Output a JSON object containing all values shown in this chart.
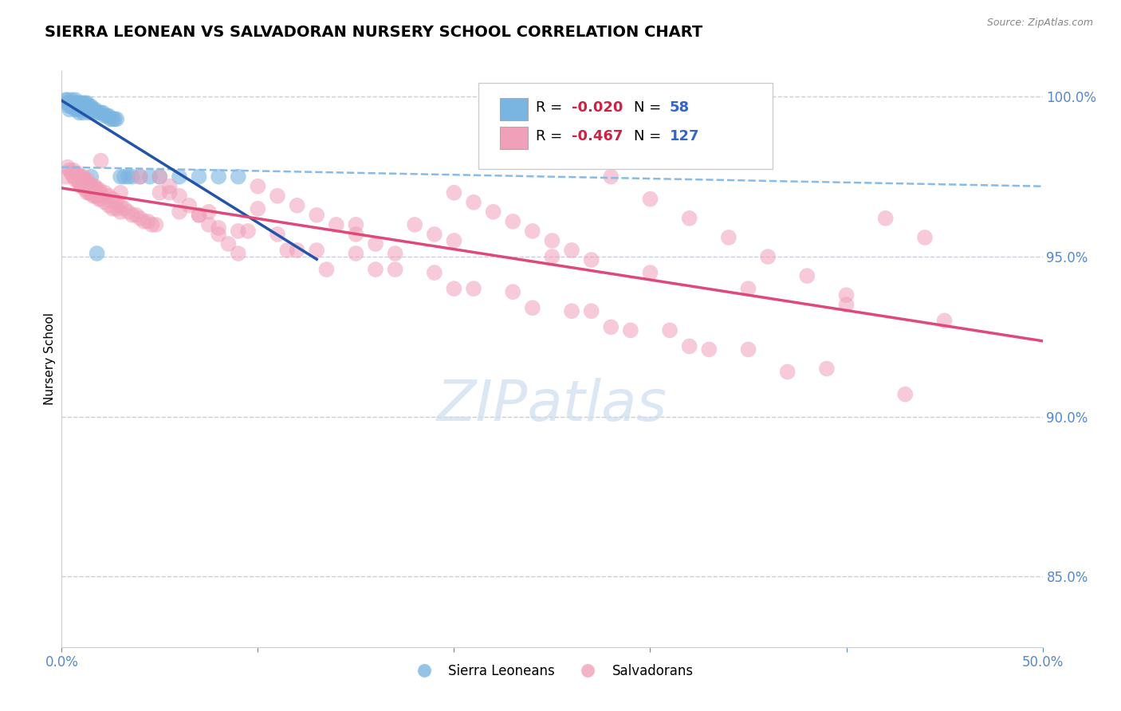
{
  "title": "SIERRA LEONEAN VS SALVADORAN NURSERY SCHOOL CORRELATION CHART",
  "source": "Source: ZipAtlas.com",
  "ylabel": "Nursery School",
  "xlim": [
    0.0,
    0.5
  ],
  "ylim": [
    0.828,
    1.008
  ],
  "blue_color": "#7ab4e0",
  "pink_color": "#f0a0b8",
  "trendline_blue_color": "#2255aa",
  "trendline_pink_color": "#e04878",
  "dashed_line_color": "#88bbe8",
  "grid_color": "#ccccdd",
  "blue_scatter_x": [
    0.002,
    0.003,
    0.004,
    0.004,
    0.005,
    0.005,
    0.006,
    0.006,
    0.007,
    0.007,
    0.008,
    0.008,
    0.009,
    0.009,
    0.01,
    0.01,
    0.011,
    0.011,
    0.012,
    0.012,
    0.013,
    0.013,
    0.014,
    0.014,
    0.015,
    0.015,
    0.016,
    0.017,
    0.018,
    0.019,
    0.02,
    0.021,
    0.022,
    0.023,
    0.024,
    0.025,
    0.026,
    0.027,
    0.028,
    0.03,
    0.032,
    0.034,
    0.036,
    0.04,
    0.045,
    0.05,
    0.06,
    0.07,
    0.08,
    0.09,
    0.003,
    0.005,
    0.007,
    0.009,
    0.011,
    0.013,
    0.015,
    0.018
  ],
  "blue_scatter_y": [
    0.999,
    0.998,
    0.997,
    0.996,
    0.998,
    0.997,
    0.998,
    0.997,
    0.997,
    0.996,
    0.998,
    0.996,
    0.997,
    0.995,
    0.998,
    0.996,
    0.997,
    0.995,
    0.998,
    0.996,
    0.997,
    0.996,
    0.997,
    0.995,
    0.997,
    0.996,
    0.996,
    0.996,
    0.995,
    0.995,
    0.995,
    0.995,
    0.994,
    0.994,
    0.994,
    0.993,
    0.993,
    0.993,
    0.993,
    0.975,
    0.975,
    0.975,
    0.975,
    0.975,
    0.975,
    0.975,
    0.975,
    0.975,
    0.975,
    0.975,
    0.999,
    0.999,
    0.999,
    0.998,
    0.998,
    0.998,
    0.975,
    0.951
  ],
  "pink_scatter_x": [
    0.002,
    0.003,
    0.004,
    0.005,
    0.006,
    0.006,
    0.007,
    0.007,
    0.008,
    0.008,
    0.009,
    0.009,
    0.01,
    0.01,
    0.011,
    0.011,
    0.012,
    0.012,
    0.013,
    0.013,
    0.014,
    0.014,
    0.015,
    0.015,
    0.016,
    0.016,
    0.017,
    0.017,
    0.018,
    0.018,
    0.019,
    0.019,
    0.02,
    0.02,
    0.022,
    0.022,
    0.024,
    0.024,
    0.026,
    0.026,
    0.028,
    0.028,
    0.03,
    0.03,
    0.032,
    0.034,
    0.036,
    0.038,
    0.04,
    0.042,
    0.044,
    0.046,
    0.048,
    0.05,
    0.055,
    0.06,
    0.065,
    0.07,
    0.075,
    0.08,
    0.085,
    0.09,
    0.1,
    0.11,
    0.12,
    0.13,
    0.14,
    0.15,
    0.16,
    0.17,
    0.18,
    0.19,
    0.2,
    0.21,
    0.22,
    0.23,
    0.24,
    0.25,
    0.26,
    0.27,
    0.28,
    0.3,
    0.32,
    0.34,
    0.36,
    0.38,
    0.4,
    0.42,
    0.44,
    0.05,
    0.1,
    0.15,
    0.2,
    0.25,
    0.3,
    0.35,
    0.4,
    0.45,
    0.03,
    0.06,
    0.09,
    0.12,
    0.16,
    0.2,
    0.24,
    0.28,
    0.32,
    0.07,
    0.11,
    0.15,
    0.19,
    0.23,
    0.27,
    0.31,
    0.35,
    0.39,
    0.08,
    0.13,
    0.17,
    0.21,
    0.26,
    0.29,
    0.33,
    0.37,
    0.43,
    0.02,
    0.04,
    0.055,
    0.075,
    0.095,
    0.115,
    0.135
  ],
  "pink_scatter_y": [
    0.975,
    0.978,
    0.977,
    0.976,
    0.977,
    0.975,
    0.976,
    0.974,
    0.976,
    0.974,
    0.975,
    0.973,
    0.975,
    0.972,
    0.975,
    0.972,
    0.974,
    0.971,
    0.974,
    0.97,
    0.973,
    0.97,
    0.972,
    0.97,
    0.972,
    0.969,
    0.972,
    0.969,
    0.971,
    0.969,
    0.971,
    0.968,
    0.97,
    0.968,
    0.97,
    0.967,
    0.969,
    0.966,
    0.968,
    0.965,
    0.967,
    0.965,
    0.966,
    0.964,
    0.965,
    0.964,
    0.963,
    0.963,
    0.962,
    0.961,
    0.961,
    0.96,
    0.96,
    0.975,
    0.972,
    0.969,
    0.966,
    0.963,
    0.96,
    0.957,
    0.954,
    0.951,
    0.972,
    0.969,
    0.966,
    0.963,
    0.96,
    0.957,
    0.954,
    0.951,
    0.96,
    0.957,
    0.97,
    0.967,
    0.964,
    0.961,
    0.958,
    0.955,
    0.952,
    0.949,
    0.975,
    0.968,
    0.962,
    0.956,
    0.95,
    0.944,
    0.938,
    0.962,
    0.956,
    0.97,
    0.965,
    0.96,
    0.955,
    0.95,
    0.945,
    0.94,
    0.935,
    0.93,
    0.97,
    0.964,
    0.958,
    0.952,
    0.946,
    0.94,
    0.934,
    0.928,
    0.922,
    0.963,
    0.957,
    0.951,
    0.945,
    0.939,
    0.933,
    0.927,
    0.921,
    0.915,
    0.959,
    0.952,
    0.946,
    0.94,
    0.933,
    0.927,
    0.921,
    0.914,
    0.907,
    0.98,
    0.975,
    0.97,
    0.964,
    0.958,
    0.952,
    0.946
  ]
}
